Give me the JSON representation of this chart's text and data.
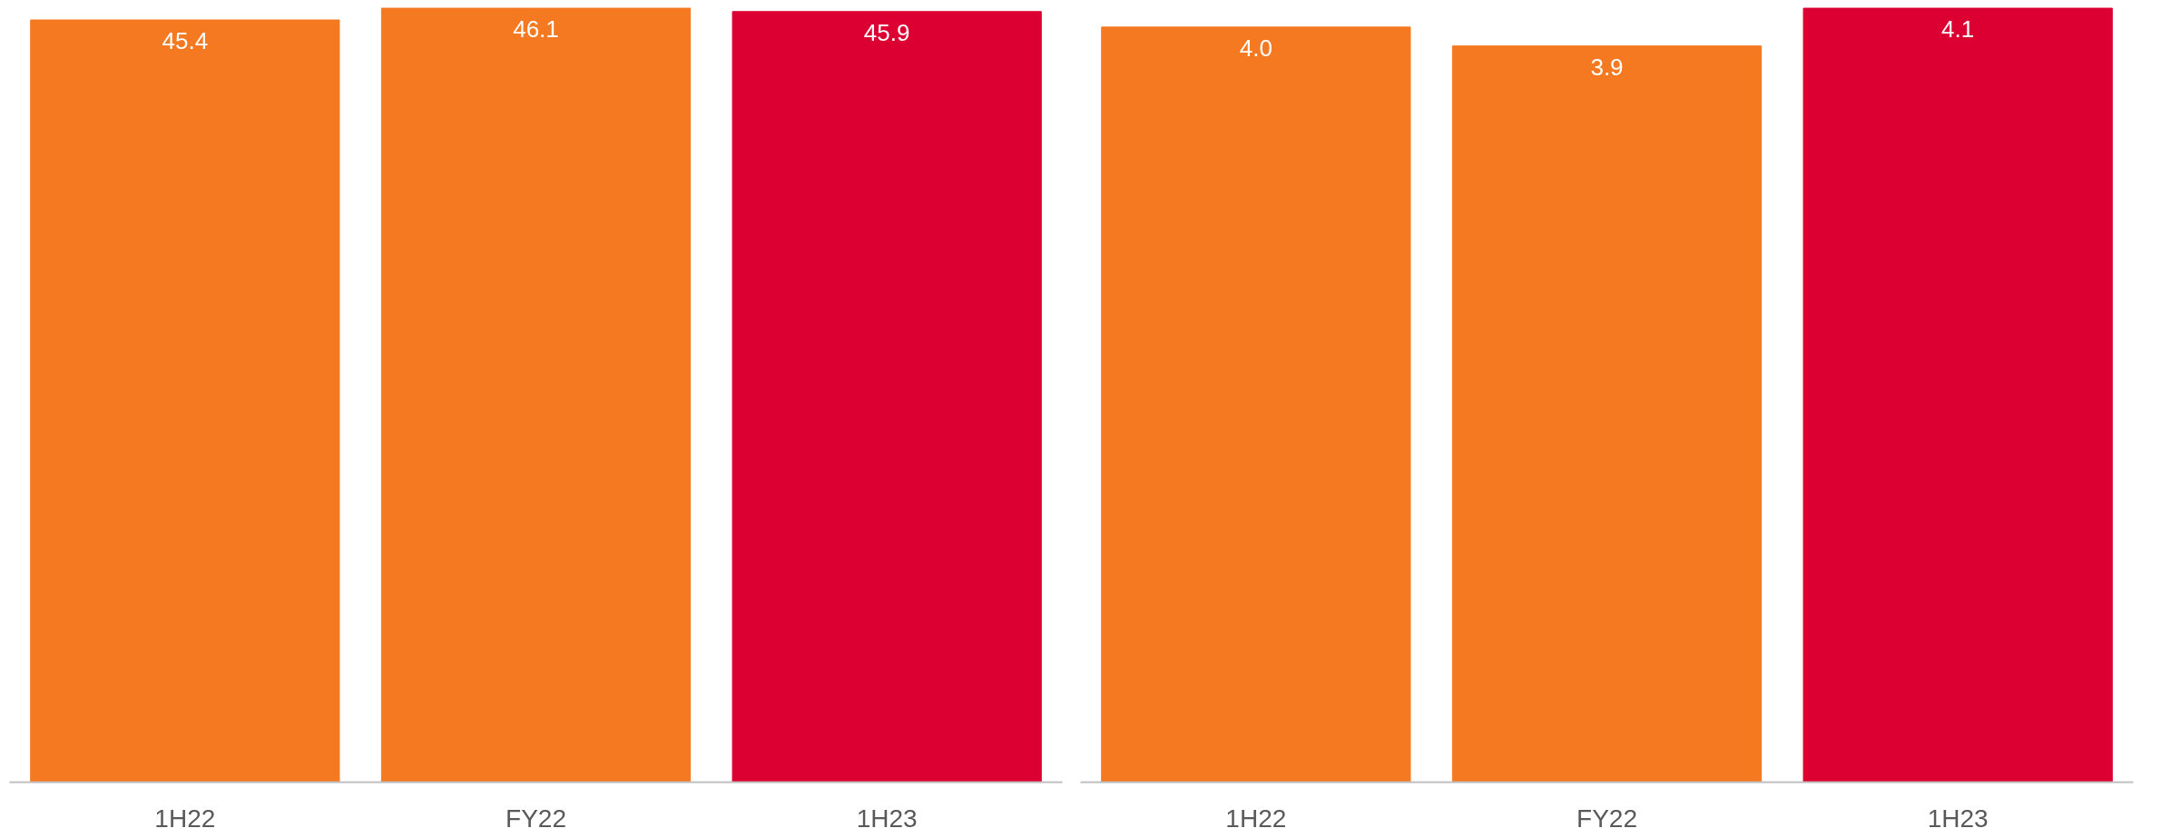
{
  "chart_data": [
    {
      "type": "bar",
      "categories": [
        "1H22",
        "FY22",
        "1H23"
      ],
      "values": [
        45.4,
        46.1,
        45.9
      ],
      "value_labels": [
        "45.4",
        "46.1",
        "45.9"
      ],
      "colors": [
        "#f47920",
        "#f47920",
        "#dc0032"
      ],
      "tick_labels": "x",
      "grid": false
    },
    {
      "type": "bar",
      "categories": [
        "1H22",
        "FY22",
        "1H23"
      ],
      "values": [
        4.0,
        3.9,
        4.1
      ],
      "value_labels": [
        "4.0",
        "3.9",
        "4.1"
      ],
      "colors": [
        "#f47920",
        "#f47920",
        "#dc0032"
      ],
      "tick_labels": "x",
      "grid": false
    }
  ]
}
